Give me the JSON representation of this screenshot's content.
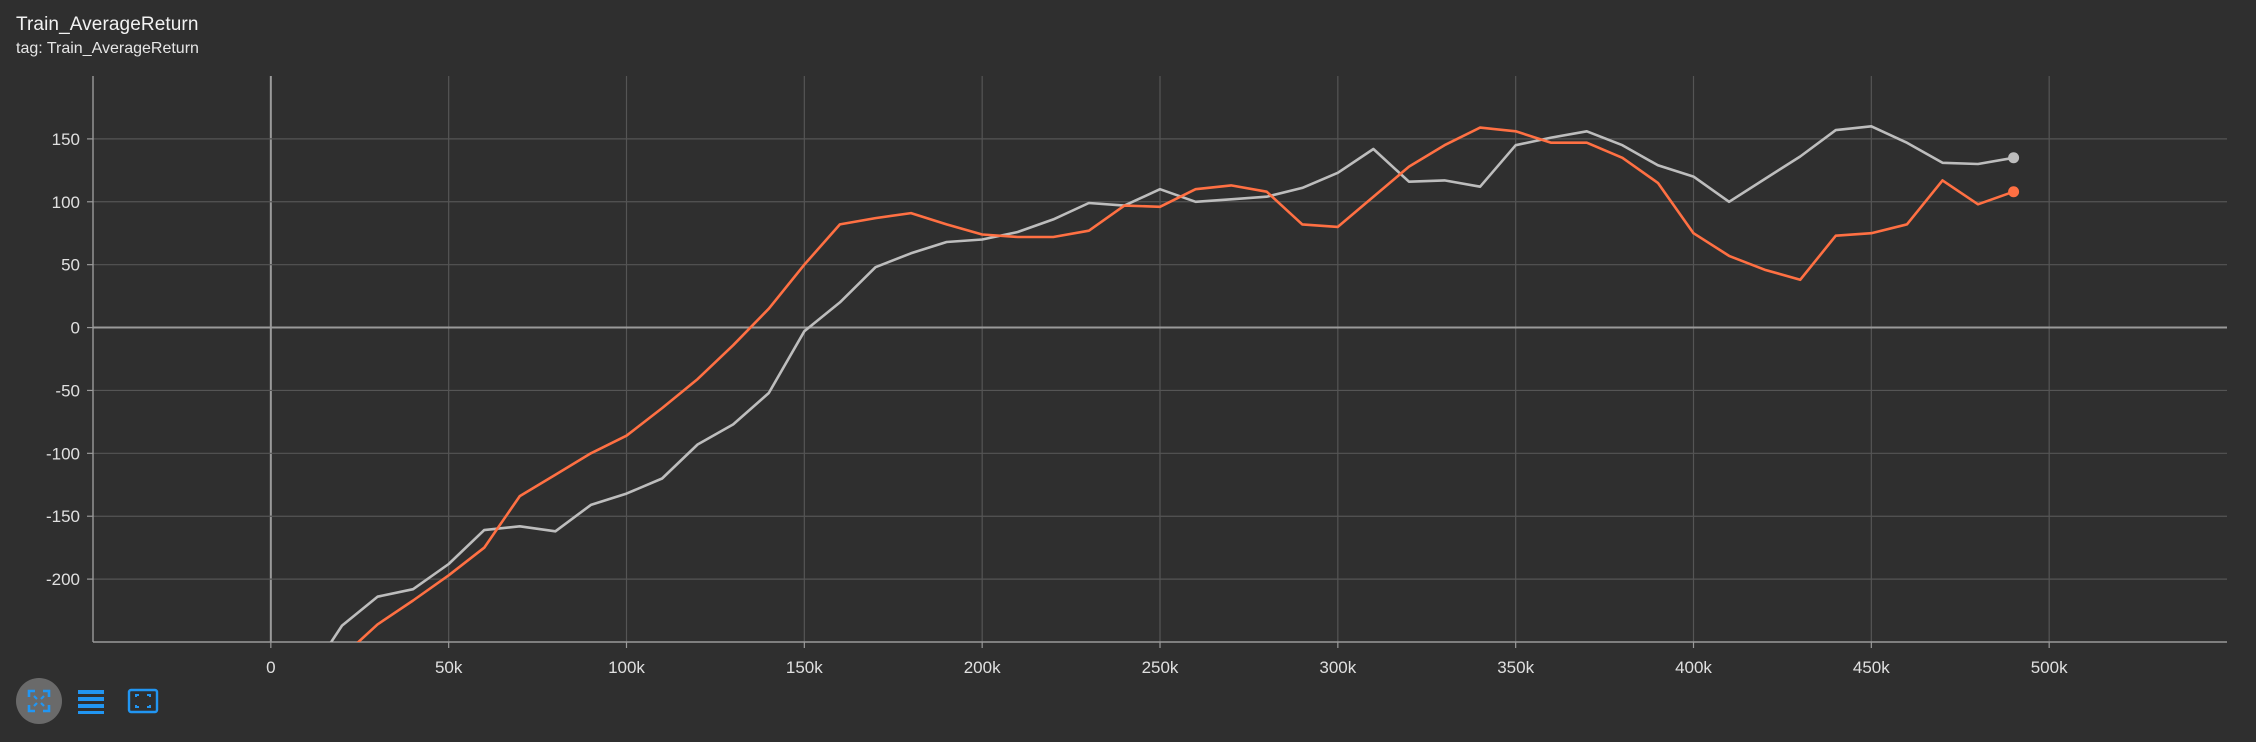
{
  "card": {
    "title": "Train_AverageReturn",
    "subtitle": "tag: Train_AverageReturn"
  },
  "colors": {
    "background": "#2f2f2f",
    "grid": "#555555",
    "zero_axis": "#9a9a9a",
    "tick_text": "#e0e0e0",
    "icon_accent": "#2196f3",
    "active_button": "#6a6a6a"
  },
  "toolbar": {
    "buttons": [
      {
        "icon": "fit-domain-icon",
        "active": true
      },
      {
        "icon": "data-table-icon",
        "active": false
      },
      {
        "icon": "expand-chart-icon",
        "active": false
      }
    ]
  },
  "chart_data": {
    "type": "line",
    "title": "",
    "xlabel": "",
    "ylabel": "",
    "xlim": [
      -50000,
      550000
    ],
    "ylim": [
      -250,
      200
    ],
    "grid": true,
    "x_ticks": [
      0,
      50000,
      100000,
      150000,
      200000,
      250000,
      300000,
      350000,
      400000,
      450000,
      500000
    ],
    "x_tick_labels": [
      "0",
      "50k",
      "100k",
      "150k",
      "200k",
      "250k",
      "300k",
      "350k",
      "400k",
      "450k",
      "500k"
    ],
    "y_ticks": [
      -200,
      -150,
      -100,
      -50,
      0,
      50,
      100,
      150
    ],
    "y_tick_labels": [
      "-200",
      "-150",
      "-100",
      "-50",
      "0",
      "50",
      "100",
      "150"
    ],
    "series": [
      {
        "color": "#bdbdbd",
        "x": [
          10000,
          20000,
          30000,
          40000,
          50000,
          60000,
          70000,
          80000,
          90000,
          100000,
          110000,
          120000,
          130000,
          140000,
          150000,
          160000,
          170000,
          180000,
          190000,
          200000,
          210000,
          220000,
          230000,
          240000,
          250000,
          260000,
          270000,
          280000,
          290000,
          300000,
          310000,
          320000,
          330000,
          340000,
          350000,
          360000,
          370000,
          380000,
          390000,
          400000,
          410000,
          420000,
          430000,
          440000,
          450000,
          460000,
          470000,
          480000,
          490000
        ],
        "y": [
          -280,
          -237,
          -214,
          -208,
          -188,
          -161,
          -158,
          -162,
          -141,
          -132,
          -120,
          -93,
          -77,
          -52,
          -3,
          20,
          48,
          59,
          68,
          70,
          76,
          86,
          99,
          97,
          110,
          100,
          102,
          104,
          111,
          123,
          142,
          116,
          117,
          112,
          145,
          151,
          156,
          145,
          129,
          120,
          100,
          118,
          136,
          157,
          160,
          147,
          131,
          130,
          135
        ]
      },
      {
        "color": "#ff7043",
        "x": [
          10000,
          20000,
          30000,
          40000,
          50000,
          60000,
          70000,
          80000,
          90000,
          100000,
          110000,
          120000,
          130000,
          140000,
          150000,
          160000,
          170000,
          180000,
          190000,
          200000,
          210000,
          220000,
          230000,
          240000,
          250000,
          260000,
          270000,
          280000,
          290000,
          300000,
          310000,
          320000,
          330000,
          340000,
          350000,
          360000,
          370000,
          380000,
          390000,
          400000,
          410000,
          420000,
          430000,
          440000,
          450000,
          460000,
          470000,
          480000,
          490000
        ],
        "y": [
          -285,
          -262,
          -236,
          -217,
          -197,
          -175,
          -134,
          -117,
          -100,
          -86,
          -64,
          -41,
          -14,
          15,
          50,
          82,
          87,
          91,
          82,
          74,
          72,
          72,
          77,
          97,
          96,
          110,
          113,
          108,
          82,
          80,
          104,
          128,
          145,
          159,
          156,
          147,
          147,
          135,
          115,
          75,
          57,
          46,
          38,
          73,
          75,
          82,
          117,
          98,
          108
        ]
      }
    ]
  }
}
